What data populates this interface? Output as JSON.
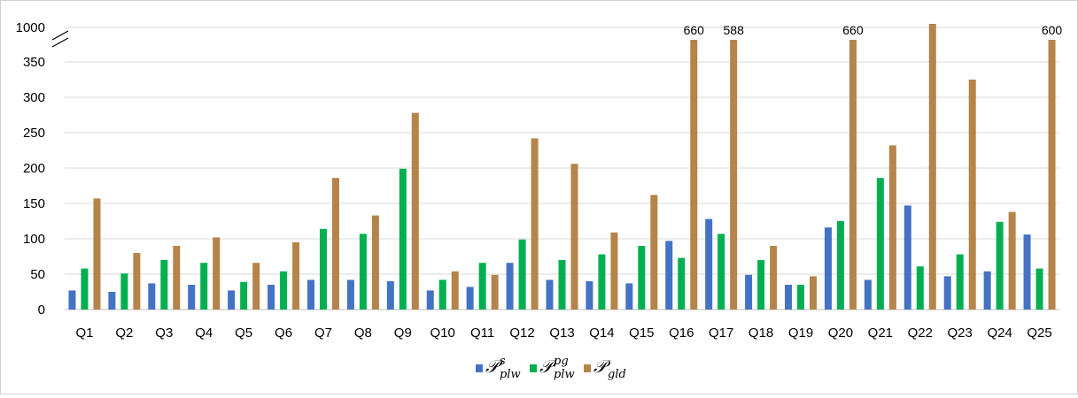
{
  "chart_data": {
    "type": "bar",
    "title": "",
    "xlabel": "",
    "ylabel": "",
    "categories": [
      "Q1",
      "Q2",
      "Q3",
      "Q4",
      "Q5",
      "Q6",
      "Q7",
      "Q8",
      "Q9",
      "Q10",
      "Q11",
      "Q12",
      "Q13",
      "Q14",
      "Q15",
      "Q16",
      "Q17",
      "Q18",
      "Q19",
      "Q20",
      "Q21",
      "Q22",
      "Q23",
      "Q24",
      "Q25"
    ],
    "ylim": [
      0,
      1000
    ],
    "axis_break": {
      "from": 375,
      "to": 1000
    },
    "y_ticks": [
      0,
      50,
      100,
      150,
      200,
      250,
      300,
      350,
      1000
    ],
    "y_tick_labels": [
      "0",
      "50",
      "100",
      "150",
      "200",
      "250",
      "300",
      "350",
      "1000"
    ],
    "grid": true,
    "legend_position": "bottom",
    "series": [
      {
        "legend_main": "𝒫",
        "legend_sup": "s",
        "legend_sub": "plw",
        "color": "#4472c4",
        "values": [
          27,
          25,
          37,
          35,
          27,
          35,
          42,
          42,
          40,
          27,
          32,
          66,
          42,
          40,
          37,
          97,
          128,
          49,
          35,
          116,
          42,
          147,
          47,
          54,
          106
        ]
      },
      {
        "legend_main": "𝒫",
        "legend_sup": "pg",
        "legend_sub": "plw",
        "color": "#00b050",
        "values": [
          58,
          51,
          70,
          66,
          39,
          54,
          114,
          107,
          199,
          42,
          66,
          99,
          70,
          78,
          90,
          73,
          107,
          70,
          35,
          125,
          186,
          61,
          78,
          124,
          58
        ]
      },
      {
        "legend_main": "𝒫",
        "legend_sup": "",
        "legend_sub": "gld",
        "color": "#b5844a",
        "values": [
          157,
          80,
          90,
          102,
          66,
          95,
          186,
          133,
          278,
          54,
          49,
          242,
          206,
          109,
          162,
          660,
          588,
          90,
          47,
          660,
          232,
          1000,
          325,
          138,
          600
        ]
      }
    ],
    "data_labels": [
      {
        "category": "Q16",
        "text": "660"
      },
      {
        "category": "Q17",
        "text": "588"
      },
      {
        "category": "Q20",
        "text": "660"
      },
      {
        "category": "Q25",
        "text": "600"
      }
    ]
  }
}
